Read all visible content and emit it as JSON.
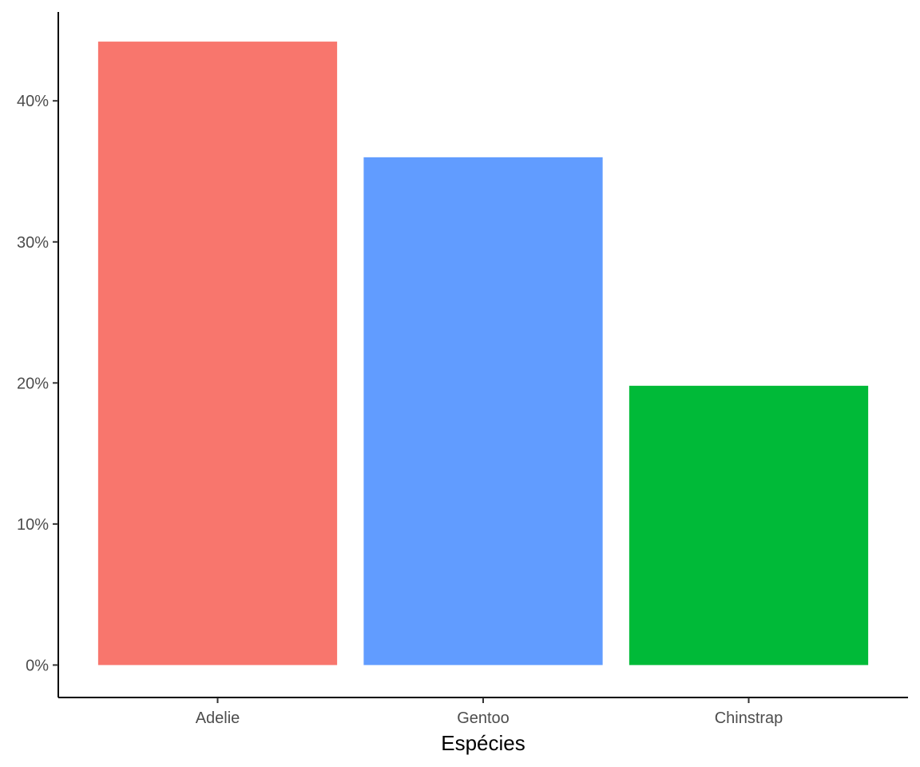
{
  "chart_data": {
    "type": "bar",
    "categories": [
      "Adelie",
      "Gentoo",
      "Chinstrap"
    ],
    "values": [
      44.2,
      36.0,
      19.8
    ],
    "unit": "%",
    "colors": [
      "#F8766D",
      "#619CFF",
      "#00BA38"
    ],
    "xlabel": "Espécies",
    "ylabel": "",
    "ylim": [
      -2.3,
      46.3
    ],
    "yticks": [
      0,
      10,
      20,
      30,
      40
    ],
    "ytick_labels": [
      "0%",
      "10%",
      "20%",
      "30%",
      "40%"
    ],
    "grid": false,
    "legend": "none"
  }
}
